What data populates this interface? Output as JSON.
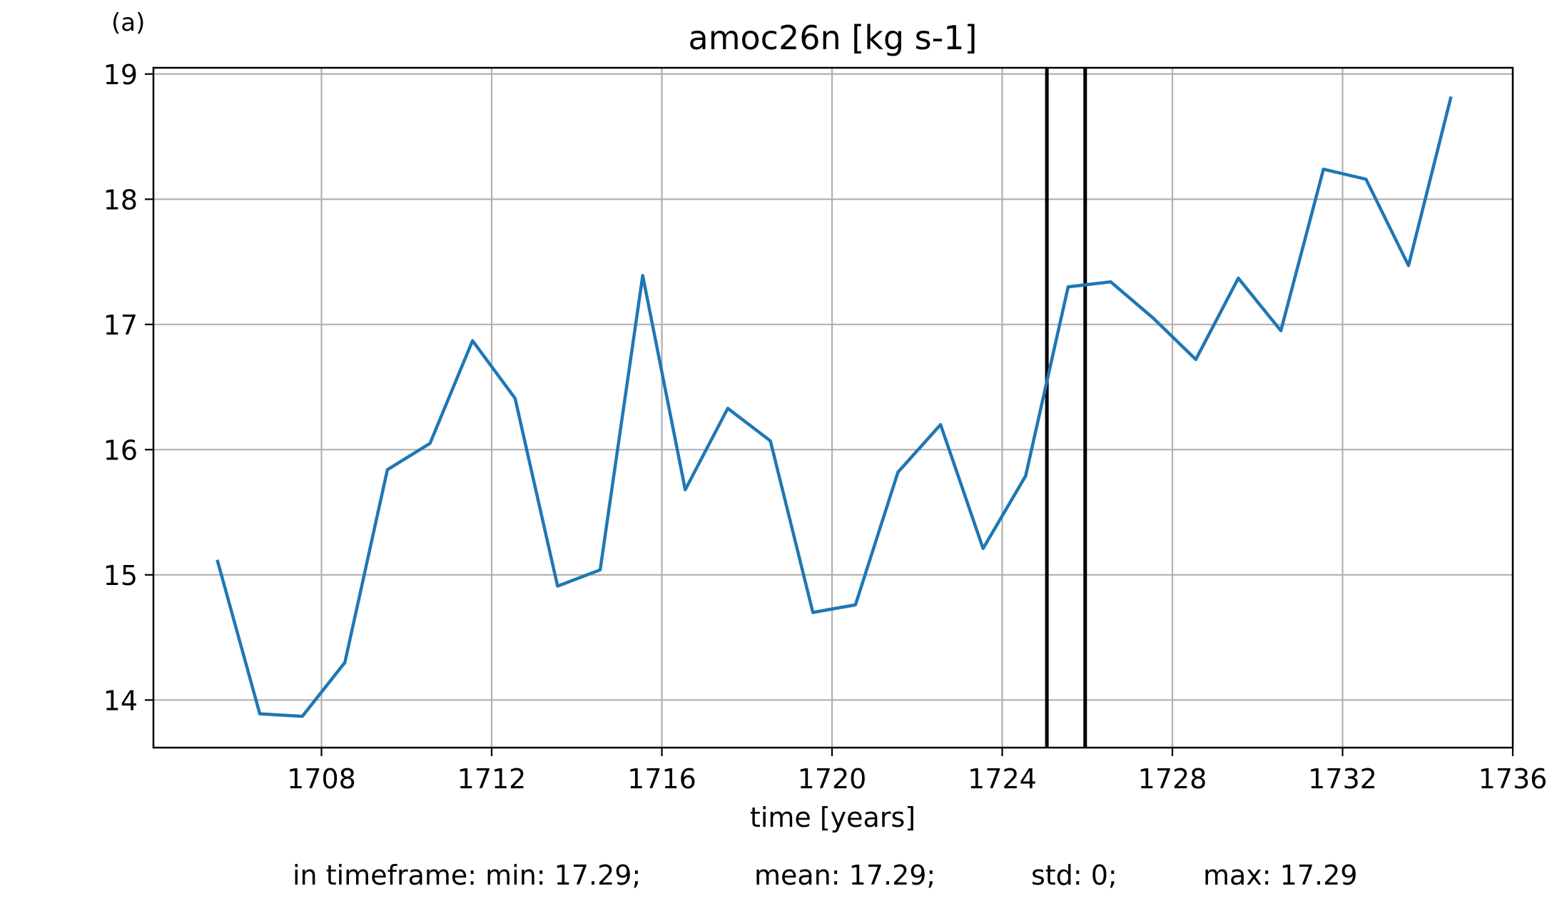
{
  "chart_data": {
    "type": "line",
    "panel_label": "(a)",
    "title": "amoc26n [kg s-1]",
    "xlabel": "time [years]",
    "ylabel": "",
    "xlim": [
      1704.05,
      1736.0
    ],
    "ylim": [
      13.62,
      19.05
    ],
    "xticks": [
      1708,
      1712,
      1716,
      1720,
      1724,
      1728,
      1732,
      1736
    ],
    "yticks": [
      14,
      15,
      16,
      17,
      18,
      19
    ],
    "grid": true,
    "series": [
      {
        "color": "#1f77b4",
        "x": [
          1705.55,
          1706.55,
          1707.55,
          1708.55,
          1709.55,
          1710.55,
          1711.55,
          1712.55,
          1713.55,
          1714.55,
          1715.55,
          1716.55,
          1717.55,
          1718.55,
          1719.55,
          1720.55,
          1721.55,
          1722.55,
          1723.55,
          1724.55,
          1725.55,
          1726.55,
          1727.55,
          1728.55,
          1729.55,
          1730.55,
          1731.55,
          1732.55,
          1733.55,
          1734.55
        ],
        "y": [
          15.12,
          13.89,
          13.87,
          14.3,
          15.84,
          16.05,
          16.87,
          16.41,
          14.91,
          15.04,
          17.39,
          15.68,
          16.33,
          16.07,
          14.7,
          14.76,
          15.82,
          16.2,
          15.21,
          15.79,
          17.3,
          17.34,
          17.05,
          16.72,
          17.37,
          16.95,
          18.24,
          18.16,
          17.47,
          18.82
        ]
      }
    ],
    "vlines": [
      {
        "x": 1725.05,
        "color": "#000000"
      },
      {
        "x": 1725.95,
        "color": "#000000"
      }
    ]
  },
  "stats": {
    "min": "in timeframe: min: 17.29;",
    "mean": "mean: 17.29;",
    "std": "std: 0;",
    "max": "max: 17.29"
  }
}
